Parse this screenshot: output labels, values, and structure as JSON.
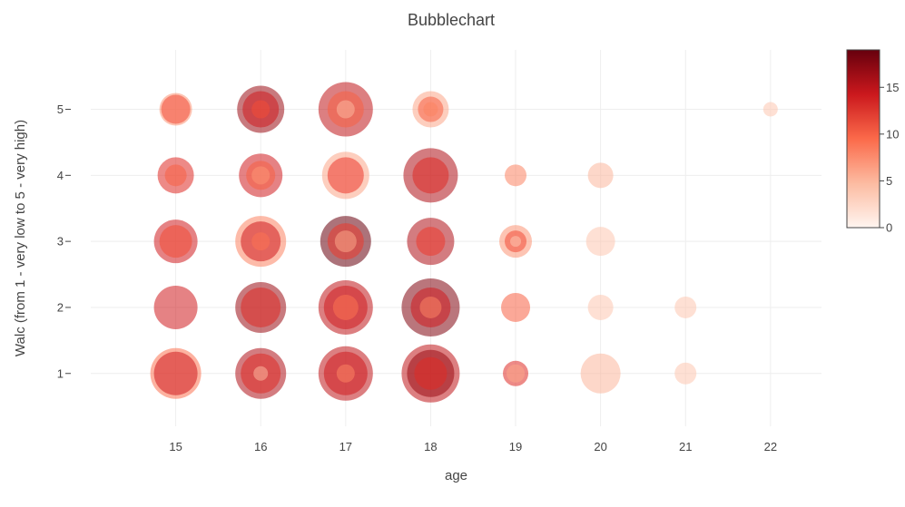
{
  "chart_data": {
    "type": "scatter",
    "title": "Bubblechart",
    "xlabel": "age",
    "ylabel": "Walc (from 1 - very low to 5 - very high)",
    "x_ticks": [
      "15",
      "16",
      "17",
      "18",
      "19",
      "20",
      "21",
      "22"
    ],
    "y_ticks": [
      "1",
      "2",
      "3",
      "4",
      "5"
    ],
    "xlim": [
      14.0,
      22.6
    ],
    "ylim": [
      0.2,
      5.9
    ],
    "grid": true,
    "colorscale": "Reds",
    "colorbar": {
      "ticks": [
        "0",
        "5",
        "10",
        "15"
      ],
      "range": [
        0,
        19
      ],
      "placement": "right"
    },
    "points": [
      {
        "x": 15,
        "y": 1,
        "bubbles": [
          {
            "size": 14,
            "color": 9
          },
          {
            "size": 12,
            "color": 14
          }
        ]
      },
      {
        "x": 15,
        "y": 2,
        "bubbles": [
          {
            "size": 12,
            "color": 14
          }
        ]
      },
      {
        "x": 15,
        "y": 3,
        "bubbles": [
          {
            "size": 12,
            "color": 14
          },
          {
            "size": 9,
            "color": 11
          }
        ]
      },
      {
        "x": 15,
        "y": 4,
        "bubbles": [
          {
            "size": 10,
            "color": 13
          },
          {
            "size": 6,
            "color": 10
          }
        ]
      },
      {
        "x": 15,
        "y": 5,
        "bubbles": [
          {
            "size": 9,
            "color": 7
          },
          {
            "size": 8,
            "color": 11
          }
        ]
      },
      {
        "x": 16,
        "y": 1,
        "bubbles": [
          {
            "size": 14,
            "color": 16
          },
          {
            "size": 11,
            "color": 13
          },
          {
            "size": 4,
            "color": 5
          }
        ]
      },
      {
        "x": 16,
        "y": 2,
        "bubbles": [
          {
            "size": 14,
            "color": 17
          },
          {
            "size": 11,
            "color": 13
          }
        ]
      },
      {
        "x": 16,
        "y": 3,
        "bubbles": [
          {
            "size": 14,
            "color": 8
          },
          {
            "size": 11,
            "color": 14
          },
          {
            "size": 5,
            "color": 9
          }
        ]
      },
      {
        "x": 16,
        "y": 4,
        "bubbles": [
          {
            "size": 12,
            "color": 14
          },
          {
            "size": 8,
            "color": 10
          },
          {
            "size": 5,
            "color": 7
          }
        ]
      },
      {
        "x": 16,
        "y": 5,
        "bubbles": [
          {
            "size": 13,
            "color": 17
          },
          {
            "size": 10,
            "color": 14
          },
          {
            "size": 5,
            "color": 11
          }
        ]
      },
      {
        "x": 17,
        "y": 1,
        "bubbles": [
          {
            "size": 15,
            "color": 15
          },
          {
            "size": 12,
            "color": 14
          },
          {
            "size": 5,
            "color": 8
          }
        ]
      },
      {
        "x": 17,
        "y": 2,
        "bubbles": [
          {
            "size": 15,
            "color": 15
          },
          {
            "size": 12,
            "color": 14
          },
          {
            "size": 7,
            "color": 9
          }
        ]
      },
      {
        "x": 17,
        "y": 3,
        "bubbles": [
          {
            "size": 14,
            "color": 19
          },
          {
            "size": 10,
            "color": 12
          },
          {
            "size": 6,
            "color": 6
          }
        ]
      },
      {
        "x": 17,
        "y": 4,
        "bubbles": [
          {
            "size": 13,
            "color": 6
          },
          {
            "size": 10,
            "color": 12
          }
        ]
      },
      {
        "x": 17,
        "y": 5,
        "bubbles": [
          {
            "size": 15,
            "color": 15
          },
          {
            "size": 10,
            "color": 10
          },
          {
            "size": 5,
            "color": 5
          }
        ]
      },
      {
        "x": 18,
        "y": 1,
        "bubbles": [
          {
            "size": 16,
            "color": 15
          },
          {
            "size": 13,
            "color": 17
          },
          {
            "size": 9,
            "color": 13
          }
        ]
      },
      {
        "x": 18,
        "y": 2,
        "bubbles": [
          {
            "size": 16,
            "color": 18
          },
          {
            "size": 11,
            "color": 14
          },
          {
            "size": 6,
            "color": 8
          }
        ]
      },
      {
        "x": 18,
        "y": 3,
        "bubbles": [
          {
            "size": 13,
            "color": 16
          },
          {
            "size": 8,
            "color": 12
          }
        ]
      },
      {
        "x": 18,
        "y": 4,
        "bubbles": [
          {
            "size": 15,
            "color": 16
          },
          {
            "size": 10,
            "color": 13
          }
        ]
      },
      {
        "x": 18,
        "y": 5,
        "bubbles": [
          {
            "size": 10,
            "color": 6
          },
          {
            "size": 7,
            "color": 10
          },
          {
            "size": 4,
            "color": 8
          }
        ]
      },
      {
        "x": 19,
        "y": 1,
        "bubbles": [
          {
            "size": 7,
            "color": 13
          },
          {
            "size": 5,
            "color": 6
          }
        ]
      },
      {
        "x": 19,
        "y": 2,
        "bubbles": [
          {
            "size": 8,
            "color": 10
          }
        ]
      },
      {
        "x": 19,
        "y": 3,
        "bubbles": [
          {
            "size": 9,
            "color": 7
          },
          {
            "size": 6,
            "color": 11
          },
          {
            "size": 3,
            "color": 4
          }
        ]
      },
      {
        "x": 19,
        "y": 4,
        "bubbles": [
          {
            "size": 6,
            "color": 8
          }
        ]
      },
      {
        "x": 20,
        "y": 1,
        "bubbles": [
          {
            "size": 11,
            "color": 5
          }
        ]
      },
      {
        "x": 20,
        "y": 2,
        "bubbles": [
          {
            "size": 7,
            "color": 4
          }
        ]
      },
      {
        "x": 20,
        "y": 3,
        "bubbles": [
          {
            "size": 8,
            "color": 4
          }
        ]
      },
      {
        "x": 20,
        "y": 4,
        "bubbles": [
          {
            "size": 7,
            "color": 5
          }
        ]
      },
      {
        "x": 21,
        "y": 1,
        "bubbles": [
          {
            "size": 6,
            "color": 4
          }
        ]
      },
      {
        "x": 21,
        "y": 2,
        "bubbles": [
          {
            "size": 6,
            "color": 4
          }
        ]
      },
      {
        "x": 22,
        "y": 5,
        "bubbles": [
          {
            "size": 4,
            "color": 4
          }
        ]
      }
    ]
  }
}
